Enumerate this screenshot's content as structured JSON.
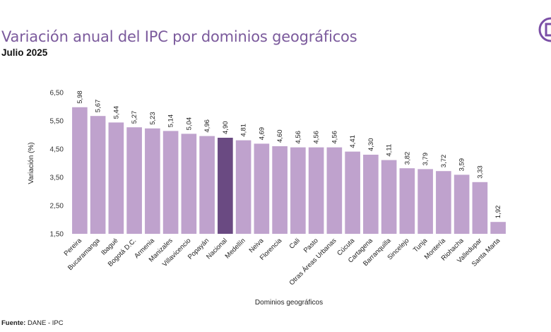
{
  "header": {
    "title": "Variación anual del IPC por dominios geográficos",
    "subtitle": "Julio 2025"
  },
  "footer": {
    "source_label": "Fuente:",
    "source_text": " DANE - IPC"
  },
  "colors": {
    "bar": "#bfa2cd",
    "highlight": "#6a4a82",
    "title": "#7b5a9c",
    "logo": "#7b4fa6"
  },
  "chart_data": {
    "type": "bar",
    "xlabel": "Dominios geográficos",
    "ylabel": "Variación (%)",
    "ylim": [
      1.5,
      6.5
    ],
    "yticks": [
      "1,50",
      "2,50",
      "3,50",
      "4,50",
      "5,50",
      "6,50"
    ],
    "categories": [
      "Pereira",
      "Bucaramanga",
      "Ibagué",
      "Bogotá D.C.",
      "Armenia",
      "Manizales",
      "Villavicencio",
      "Popayán",
      "Nacional",
      "Medellín",
      "Neiva",
      "Florencia",
      "Cali",
      "Pasto",
      "Otras Áreas Urbanas",
      "Cúcuta",
      "Cartagena",
      "Barranquilla",
      "Sincelejo",
      "Tunja",
      "Montería",
      "Riohacha",
      "Valledupar",
      "Santa Marta"
    ],
    "values": [
      5.98,
      5.67,
      5.44,
      5.27,
      5.23,
      5.14,
      5.04,
      4.96,
      4.9,
      4.81,
      4.69,
      4.6,
      4.56,
      4.56,
      4.56,
      4.41,
      4.3,
      4.11,
      3.82,
      3.79,
      3.72,
      3.59,
      3.33,
      1.92
    ],
    "value_labels": [
      "5,98",
      "5,67",
      "5,44",
      "5,27",
      "5,23",
      "5,14",
      "5,04",
      "4,96",
      "4,90",
      "4,81",
      "4,69",
      "4,60",
      "4,56",
      "4,56",
      "4,56",
      "4,41",
      "4,30",
      "4,11",
      "3,82",
      "3,79",
      "3,72",
      "3,59",
      "3,33",
      "1,92"
    ],
    "highlight_category": "Nacional",
    "grid": false,
    "legend": "none"
  }
}
